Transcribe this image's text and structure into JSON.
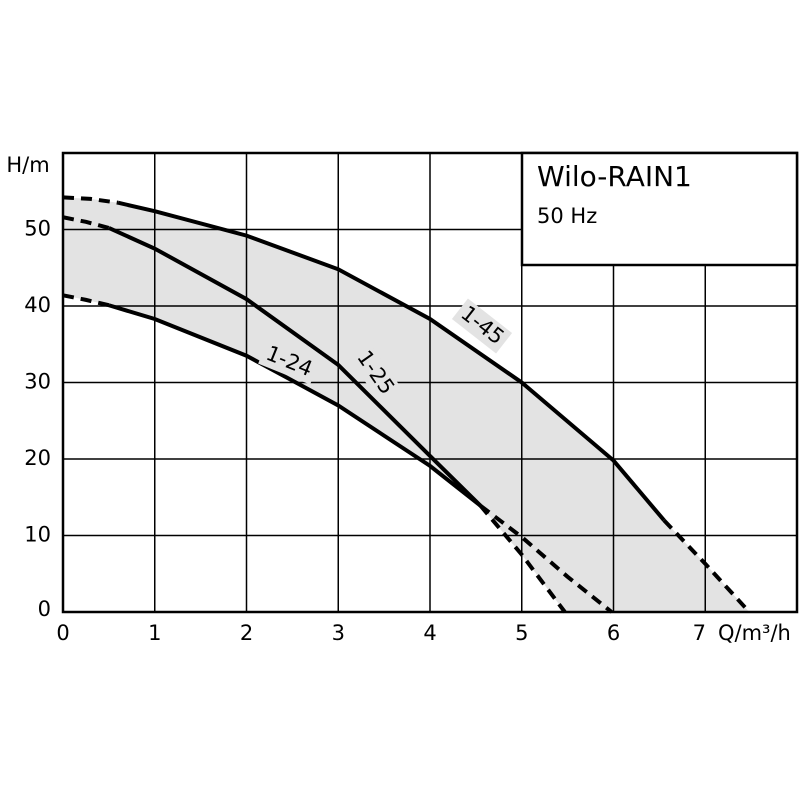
{
  "chart_data": {
    "type": "line",
    "title": "Wilo-RAIN1",
    "subtitle": "50 Hz",
    "y_label": "H/m",
    "x_label": "Q/m³/h",
    "xlim": [
      0,
      8
    ],
    "ylim": [
      0,
      60
    ],
    "xticks": [
      0,
      1,
      2,
      3,
      4,
      5,
      6,
      7
    ],
    "yticks": [
      0,
      10,
      20,
      30,
      40,
      50
    ],
    "grid": true,
    "area_color": "#e3e3e3",
    "series": [
      {
        "name": "1-45",
        "color": "#000000",
        "segments": [
          {
            "style": "dashed",
            "x": [
              0,
              0.3,
              0.6
            ],
            "values": [
              54.2,
              54,
              53.5
            ]
          },
          {
            "style": "solid",
            "x": [
              0.6,
              1,
              2,
              3,
              4,
              5,
              6,
              6.55
            ],
            "values": [
              53.5,
              52.4,
              49.2,
              44.8,
              38.3,
              30,
              19.8,
              12
            ]
          },
          {
            "style": "dashed",
            "x": [
              6.55,
              7,
              7.48
            ],
            "values": [
              12,
              6.3,
              0
            ]
          }
        ]
      },
      {
        "name": "1-25",
        "color": "#000000",
        "segments": [
          {
            "style": "dashed",
            "x": [
              0,
              0.25,
              0.5
            ],
            "values": [
              51.6,
              51,
              50.2
            ]
          },
          {
            "style": "solid",
            "x": [
              0.5,
              1,
              2,
              3,
              4,
              4.55
            ],
            "values": [
              50.2,
              47.5,
              40.9,
              32.3,
              20.4,
              13.9
            ]
          },
          {
            "style": "dashed",
            "x": [
              4.55,
              5,
              5.47
            ],
            "values": [
              13.9,
              7.5,
              0
            ]
          }
        ]
      },
      {
        "name": "1-24",
        "color": "#000000",
        "segments": [
          {
            "style": "dashed",
            "x": [
              0,
              0.25,
              0.5
            ],
            "values": [
              41.4,
              40.8,
              40.1
            ]
          },
          {
            "style": "solid",
            "x": [
              0.5,
              1,
              2,
              3,
              4,
              4.55
            ],
            "values": [
              40.1,
              38.3,
              33.5,
              27,
              19.1,
              13.9
            ]
          },
          {
            "style": "dashed",
            "x": [
              4.55,
              5,
              5.5,
              5.98
            ],
            "values": [
              13.9,
              9.8,
              4.6,
              0
            ]
          }
        ]
      }
    ]
  }
}
